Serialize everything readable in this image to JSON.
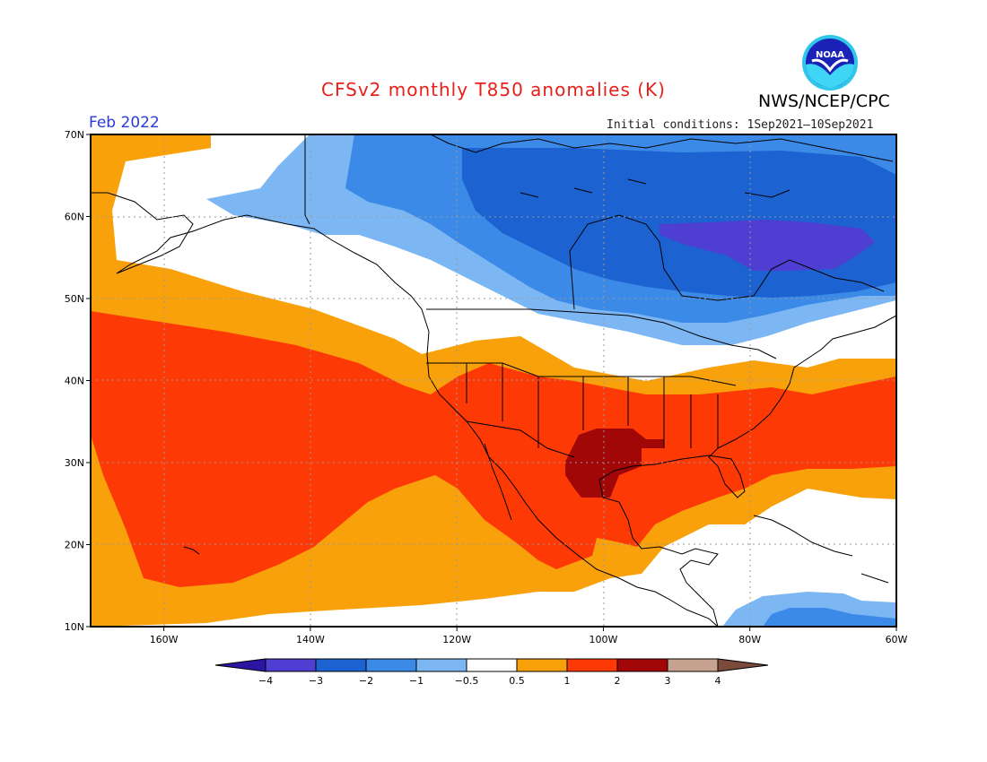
{
  "header": {
    "title": "CFSv2 monthly T850 anomalies (K)",
    "agency": "NWS/NCEP/CPC",
    "logo_text": "NOAA",
    "target_month": "Feb 2022",
    "initial_conditions": "Initial conditions: 1Sep2021—10Sep2021"
  },
  "map": {
    "lon_range": [
      -170,
      -60
    ],
    "lat_range": [
      10,
      70
    ],
    "lon_ticks": [
      {
        "value": -160,
        "label": "160W"
      },
      {
        "value": -140,
        "label": "140W"
      },
      {
        "value": -120,
        "label": "120W"
      },
      {
        "value": -100,
        "label": "100W"
      },
      {
        "value": -80,
        "label": "80W"
      },
      {
        "value": -60,
        "label": "60W"
      }
    ],
    "lat_ticks": [
      {
        "value": 70,
        "label": "70N"
      },
      {
        "value": 60,
        "label": "60N"
      },
      {
        "value": 50,
        "label": "50N"
      },
      {
        "value": 40,
        "label": "40N"
      },
      {
        "value": 30,
        "label": "30N"
      },
      {
        "value": 20,
        "label": "20N"
      },
      {
        "value": 10,
        "label": "10N"
      }
    ]
  },
  "colorbar": {
    "labels": [
      "−4",
      "−3",
      "−2",
      "−1",
      "−0.5",
      "0.5",
      "1",
      "2",
      "3",
      "4"
    ],
    "colors": [
      "#2a16a3",
      "#4e3ed1",
      "#1c63d1",
      "#3b8ae8",
      "#7cb7f3",
      "#ffffff",
      "#f9a10a",
      "#fd3a06",
      "#a10707",
      "#c8a290",
      "#7a4a3a"
    ],
    "bins": [
      {
        "label": "< -4",
        "color": "#2a16a3"
      },
      {
        "label": "-4 to -3",
        "color": "#4e3ed1"
      },
      {
        "label": "-3 to -2",
        "color": "#1c63d1"
      },
      {
        "label": "-2 to -1",
        "color": "#3b8ae8"
      },
      {
        "label": "-1 to -0.5",
        "color": "#7cb7f3"
      },
      {
        "label": "-0.5 to 0.5",
        "color": "#ffffff"
      },
      {
        "label": "0.5 to 1",
        "color": "#f9a10a"
      },
      {
        "label": "1 to 2",
        "color": "#fd3a06"
      },
      {
        "label": "2 to 3",
        "color": "#a10707"
      },
      {
        "label": "3 to 4",
        "color": "#c8a290"
      },
      {
        "label": "> 4",
        "color": "#7a4a3a"
      }
    ]
  }
}
